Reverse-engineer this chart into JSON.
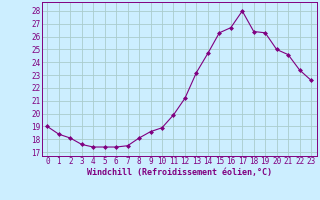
{
  "x": [
    0,
    1,
    2,
    3,
    4,
    5,
    6,
    7,
    8,
    9,
    10,
    11,
    12,
    13,
    14,
    15,
    16,
    17,
    18,
    19,
    20,
    21,
    22,
    23
  ],
  "y": [
    19,
    18.4,
    18.1,
    17.6,
    17.4,
    17.4,
    17.4,
    17.5,
    18.1,
    18.6,
    18.9,
    19.9,
    21.2,
    23.2,
    24.7,
    26.3,
    26.7,
    28.0,
    26.4,
    26.3,
    25.0,
    24.6,
    23.4,
    22.6
  ],
  "line_color": "#800080",
  "marker": "D",
  "marker_size": 2.0,
  "bg_color": "#cceeff",
  "grid_color": "#aacccc",
  "xlabel": "Windchill (Refroidissement éolien,°C)",
  "ylabel_ticks": [
    17,
    18,
    19,
    20,
    21,
    22,
    23,
    24,
    25,
    26,
    27,
    28
  ],
  "ylim": [
    16.7,
    28.7
  ],
  "xlim": [
    -0.5,
    23.5
  ],
  "xticks": [
    0,
    1,
    2,
    3,
    4,
    5,
    6,
    7,
    8,
    9,
    10,
    11,
    12,
    13,
    14,
    15,
    16,
    17,
    18,
    19,
    20,
    21,
    22,
    23
  ],
  "tick_fontsize": 5.5,
  "xlabel_fontsize": 6.0
}
